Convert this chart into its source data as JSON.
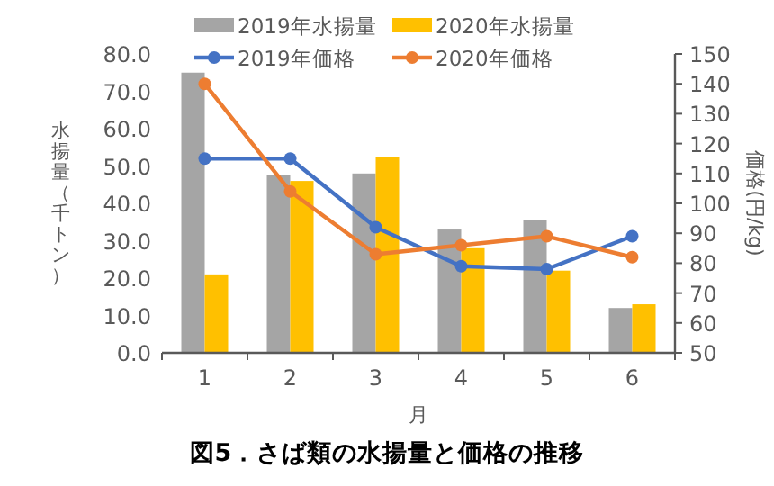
{
  "chart_data": {
    "type": "bar",
    "title": "図5．さば類の水揚量と価格の推移",
    "xlabel": "月",
    "ylabel": "水揚量（千トン）",
    "y2label": "価格(円/kg)",
    "categories": [
      "1",
      "2",
      "3",
      "4",
      "5",
      "6"
    ],
    "series": [
      {
        "name": "2019年水揚量",
        "color": "#a5a5a5",
        "values": [
          75,
          47.5,
          48,
          33,
          35.5,
          12
        ]
      },
      {
        "name": "2020年水揚量",
        "color": "#ffc000",
        "values": [
          21,
          46,
          52.5,
          28,
          22,
          13
        ]
      },
      {
        "name": "2019年価格",
        "type": "line",
        "axis": "y2",
        "color": "#4472c4",
        "values": [
          115,
          115,
          92,
          79,
          78,
          89
        ]
      },
      {
        "name": "2020年価格",
        "type": "line",
        "axis": "y2",
        "color": "#ed7d31",
        "values": [
          140,
          104,
          83,
          86,
          89,
          82
        ]
      }
    ],
    "ylim": [
      0,
      80
    ],
    "yticks": [
      {
        "value": 0,
        "label": "0.0"
      },
      {
        "value": 10,
        "label": "10.0"
      },
      {
        "value": 20,
        "label": "20.0"
      },
      {
        "value": 30,
        "label": "30.0"
      },
      {
        "value": 40,
        "label": "40.0"
      },
      {
        "value": 50,
        "label": "50.0"
      },
      {
        "value": 60,
        "label": "60.0"
      },
      {
        "value": 70,
        "label": "70.0"
      },
      {
        "value": 80,
        "label": "80.0"
      }
    ],
    "y2lim": [
      50,
      150
    ],
    "y2ticks": [
      50,
      60,
      70,
      80,
      90,
      100,
      110,
      120,
      130,
      140,
      150
    ],
    "marker": "circle",
    "legend": "top",
    "grid": false
  }
}
